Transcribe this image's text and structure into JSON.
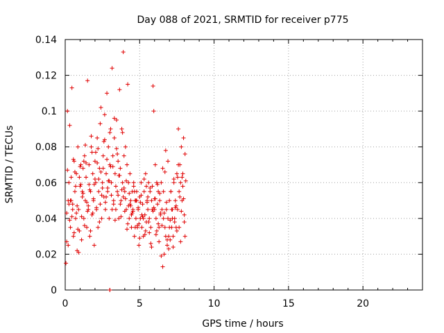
{
  "chart_data": {
    "type": "scatter",
    "title": "Day 088 of 2021, SRMTID for receiver p775",
    "xlabel": "GPS time / hours",
    "ylabel": "SRMTID / TECUs",
    "xlim": [
      0,
      24
    ],
    "ylim": [
      0,
      0.14
    ],
    "xticks": [
      0,
      5,
      10,
      15,
      20
    ],
    "xtick_labels": [
      "0",
      "5",
      "10",
      "15",
      "20"
    ],
    "yticks": [
      0,
      0.02,
      0.04,
      0.06,
      0.08,
      0.1,
      0.12,
      0.14
    ],
    "ytick_labels": [
      "0",
      "0.02",
      "0.04",
      "0.06",
      "0.08",
      "0.1",
      "0.12",
      "0.14"
    ],
    "grid": true,
    "marker": "+",
    "color": "#e00000",
    "series": [
      {
        "name": "SRMTID",
        "x": [
          0.05,
          0.1,
          0.15,
          0.2,
          0.25,
          0.3,
          0.35,
          0.4,
          0.45,
          0.5,
          0.55,
          0.6,
          0.65,
          0.7,
          0.75,
          0.8,
          0.85,
          0.9,
          0.95,
          1.0,
          1.05,
          1.1,
          1.15,
          1.2,
          1.25,
          1.3,
          1.35,
          1.4,
          1.45,
          1.5,
          1.55,
          1.6,
          1.65,
          1.7,
          1.75,
          1.8,
          1.85,
          1.9,
          1.95,
          2.0,
          2.05,
          2.1,
          2.15,
          2.2,
          2.25,
          2.3,
          2.35,
          2.4,
          2.45,
          2.5,
          2.55,
          2.6,
          2.65,
          2.7,
          2.75,
          2.8,
          2.85,
          2.9,
          2.95,
          3.0,
          3.05,
          3.1,
          3.15,
          3.2,
          3.25,
          3.3,
          3.35,
          3.4,
          3.45,
          3.5,
          3.55,
          3.6,
          3.65,
          3.7,
          3.75,
          3.8,
          3.85,
          3.9,
          3.95,
          4.0,
          4.05,
          4.1,
          4.15,
          4.2,
          4.25,
          4.3,
          4.35,
          4.4,
          4.45,
          4.5,
          4.55,
          4.6,
          4.65,
          4.7,
          4.75,
          4.8,
          4.85,
          4.9,
          4.95,
          5.0,
          5.05,
          5.1,
          5.15,
          5.2,
          5.25,
          5.3,
          5.35,
          5.4,
          5.45,
          5.5,
          5.55,
          5.6,
          5.65,
          5.7,
          5.75,
          5.8,
          5.85,
          5.9,
          5.95,
          6.0,
          6.05,
          6.1,
          6.15,
          6.2,
          6.25,
          6.3,
          6.35,
          6.4,
          6.45,
          6.5,
          6.55,
          6.6,
          6.65,
          6.7,
          6.75,
          6.8,
          6.85,
          6.9,
          6.95,
          7.0,
          7.05,
          7.1,
          7.15,
          7.2,
          7.25,
          7.3,
          7.35,
          7.4,
          7.45,
          7.5,
          7.55,
          7.6,
          7.65,
          7.7,
          7.75,
          7.8,
          7.85,
          7.9,
          7.95,
          8.0,
          8.05,
          8.1,
          0.1,
          0.2,
          0.3,
          0.4,
          0.5,
          0.6,
          0.7,
          0.8,
          0.9,
          1.0,
          1.1,
          1.2,
          1.3,
          1.4,
          1.5,
          1.6,
          1.7,
          1.8,
          1.9,
          2.0,
          2.1,
          2.2,
          2.3,
          2.4,
          2.5,
          2.6,
          2.7,
          2.8,
          2.9,
          3.0,
          3.1,
          3.2,
          3.3,
          3.4,
          3.5,
          3.6,
          3.7,
          3.8,
          3.9,
          4.0,
          4.1,
          4.2,
          4.3,
          4.4,
          4.5,
          4.6,
          4.7,
          4.8,
          4.9,
          5.0,
          5.1,
          5.2,
          5.3,
          5.4,
          5.5,
          5.6,
          5.7,
          5.8,
          5.9,
          6.0,
          6.1,
          6.2,
          6.3,
          6.4,
          6.5,
          6.6,
          6.7,
          6.8,
          6.9,
          7.0,
          7.1,
          7.2,
          7.3,
          7.4,
          7.5,
          7.6,
          7.7,
          7.8,
          7.9,
          8.0,
          0.15,
          0.35,
          0.55,
          0.75,
          0.95,
          1.15,
          1.35,
          1.55,
          1.75,
          1.95,
          2.15,
          2.35,
          2.55,
          2.75,
          2.95,
          3.15,
          3.35,
          3.55,
          3.75,
          3.95,
          4.15,
          4.35,
          4.55,
          4.75,
          4.95,
          5.15,
          5.35,
          5.55,
          5.75,
          5.95,
          6.15,
          6.35,
          6.55,
          6.75,
          6.95,
          7.15,
          7.35,
          7.55,
          7.75,
          7.95,
          0.25,
          0.45,
          0.65,
          0.85,
          1.05,
          1.25,
          1.45,
          1.65,
          1.85,
          2.05,
          2.25,
          2.45,
          2.65,
          2.85,
          3.05,
          3.25,
          3.45,
          3.65,
          3.85,
          4.05,
          4.25,
          4.45,
          4.65,
          4.85,
          5.05,
          5.25,
          5.45,
          5.65,
          5.85,
          6.05,
          6.25,
          6.45,
          6.65,
          6.85,
          7.05,
          7.25,
          7.45,
          7.65,
          7.85,
          8.05,
          3.0,
          3.0
        ],
        "y": [
          0.015,
          0.043,
          0.1,
          0.025,
          0.06,
          0.092,
          0.035,
          0.05,
          0.113,
          0.048,
          0.03,
          0.072,
          0.055,
          0.04,
          0.065,
          0.022,
          0.08,
          0.045,
          0.033,
          0.058,
          0.07,
          0.028,
          0.052,
          0.068,
          0.04,
          0.075,
          0.05,
          0.063,
          0.035,
          0.117,
          0.045,
          0.07,
          0.03,
          0.055,
          0.08,
          0.042,
          0.065,
          0.05,
          0.025,
          0.072,
          0.06,
          0.045,
          0.085,
          0.035,
          0.055,
          0.068,
          0.048,
          0.102,
          0.04,
          0.06,
          0.075,
          0.052,
          0.098,
          0.045,
          0.065,
          0.11,
          0.055,
          0.08,
          0.04,
          0.07,
          0.09,
          0.06,
          0.124,
          0.075,
          0.05,
          0.085,
          0.065,
          0.045,
          0.095,
          0.055,
          0.072,
          0.04,
          0.112,
          0.068,
          0.05,
          0.09,
          0.06,
          0.133,
          0.075,
          0.055,
          0.08,
          0.045,
          0.07,
          0.115,
          0.06,
          0.04,
          0.065,
          0.05,
          0.035,
          0.055,
          0.045,
          0.06,
          0.03,
          0.05,
          0.04,
          0.055,
          0.035,
          0.045,
          0.025,
          0.052,
          0.04,
          0.06,
          0.035,
          0.048,
          0.03,
          0.055,
          0.042,
          0.065,
          0.038,
          0.05,
          0.045,
          0.06,
          0.04,
          0.055,
          0.035,
          0.05,
          0.058,
          0.114,
          0.1,
          0.045,
          0.07,
          0.04,
          0.06,
          0.048,
          0.055,
          0.035,
          0.05,
          0.042,
          0.06,
          0.045,
          0.013,
          0.04,
          0.02,
          0.035,
          0.03,
          0.045,
          0.025,
          0.04,
          0.03,
          0.05,
          0.028,
          0.055,
          0.035,
          0.045,
          0.03,
          0.06,
          0.04,
          0.05,
          0.035,
          0.065,
          0.045,
          0.09,
          0.055,
          0.07,
          0.06,
          0.08,
          0.05,
          0.065,
          0.085,
          0.042,
          0.03,
          0.061,
          0.027,
          0.05,
          0.039,
          0.063,
          0.045,
          0.032,
          0.058,
          0.047,
          0.021,
          0.069,
          0.041,
          0.054,
          0.036,
          0.071,
          0.044,
          0.059,
          0.033,
          0.077,
          0.051,
          0.062,
          0.046,
          0.079,
          0.038,
          0.066,
          0.057,
          0.083,
          0.049,
          0.073,
          0.061,
          0.088,
          0.053,
          0.069,
          0.096,
          0.058,
          0.076,
          0.064,
          0.048,
          0.056,
          0.052,
          0.044,
          0.061,
          0.037,
          0.054,
          0.047,
          0.043,
          0.058,
          0.035,
          0.05,
          0.046,
          0.029,
          0.053,
          0.041,
          0.062,
          0.033,
          0.049,
          0.038,
          0.057,
          0.024,
          0.044,
          0.051,
          0.031,
          0.059,
          0.027,
          0.043,
          0.036,
          0.055,
          0.066,
          0.049,
          0.072,
          0.035,
          0.055,
          0.04,
          0.062,
          0.046,
          0.033,
          0.07,
          0.052,
          0.044,
          0.058,
          0.038,
          0.067,
          0.05,
          0.073,
          0.043,
          0.063,
          0.055,
          0.081,
          0.047,
          0.086,
          0.059,
          0.071,
          0.093,
          0.068,
          0.052,
          0.061,
          0.045,
          0.039,
          0.053,
          0.041,
          0.057,
          0.034,
          0.048,
          0.044,
          0.05,
          0.037,
          0.042,
          0.031,
          0.052,
          0.026,
          0.046,
          0.033,
          0.054,
          0.068,
          0.078,
          0.023,
          0.045,
          0.038,
          0.063,
          0.027,
          0.051,
          0.048,
          0.041,
          0.066,
          0.034,
          0.059,
          0.072,
          0.049,
          0.056,
          0.043,
          0.077,
          0.062,
          0.053,
          0.084,
          0.057,
          0.069,
          0.048,
          0.079,
          0.064,
          0.088,
          0.051,
          0.047,
          0.042,
          0.055,
          0.036,
          0.049,
          0.04,
          0.058,
          0.032,
          0.045,
          0.051,
          0.037,
          0.019,
          0.043,
          0.028,
          0.039,
          0.024,
          0.047,
          0.035,
          0.063,
          0.076,
          0.0,
          0.0
        ]
      }
    ]
  }
}
